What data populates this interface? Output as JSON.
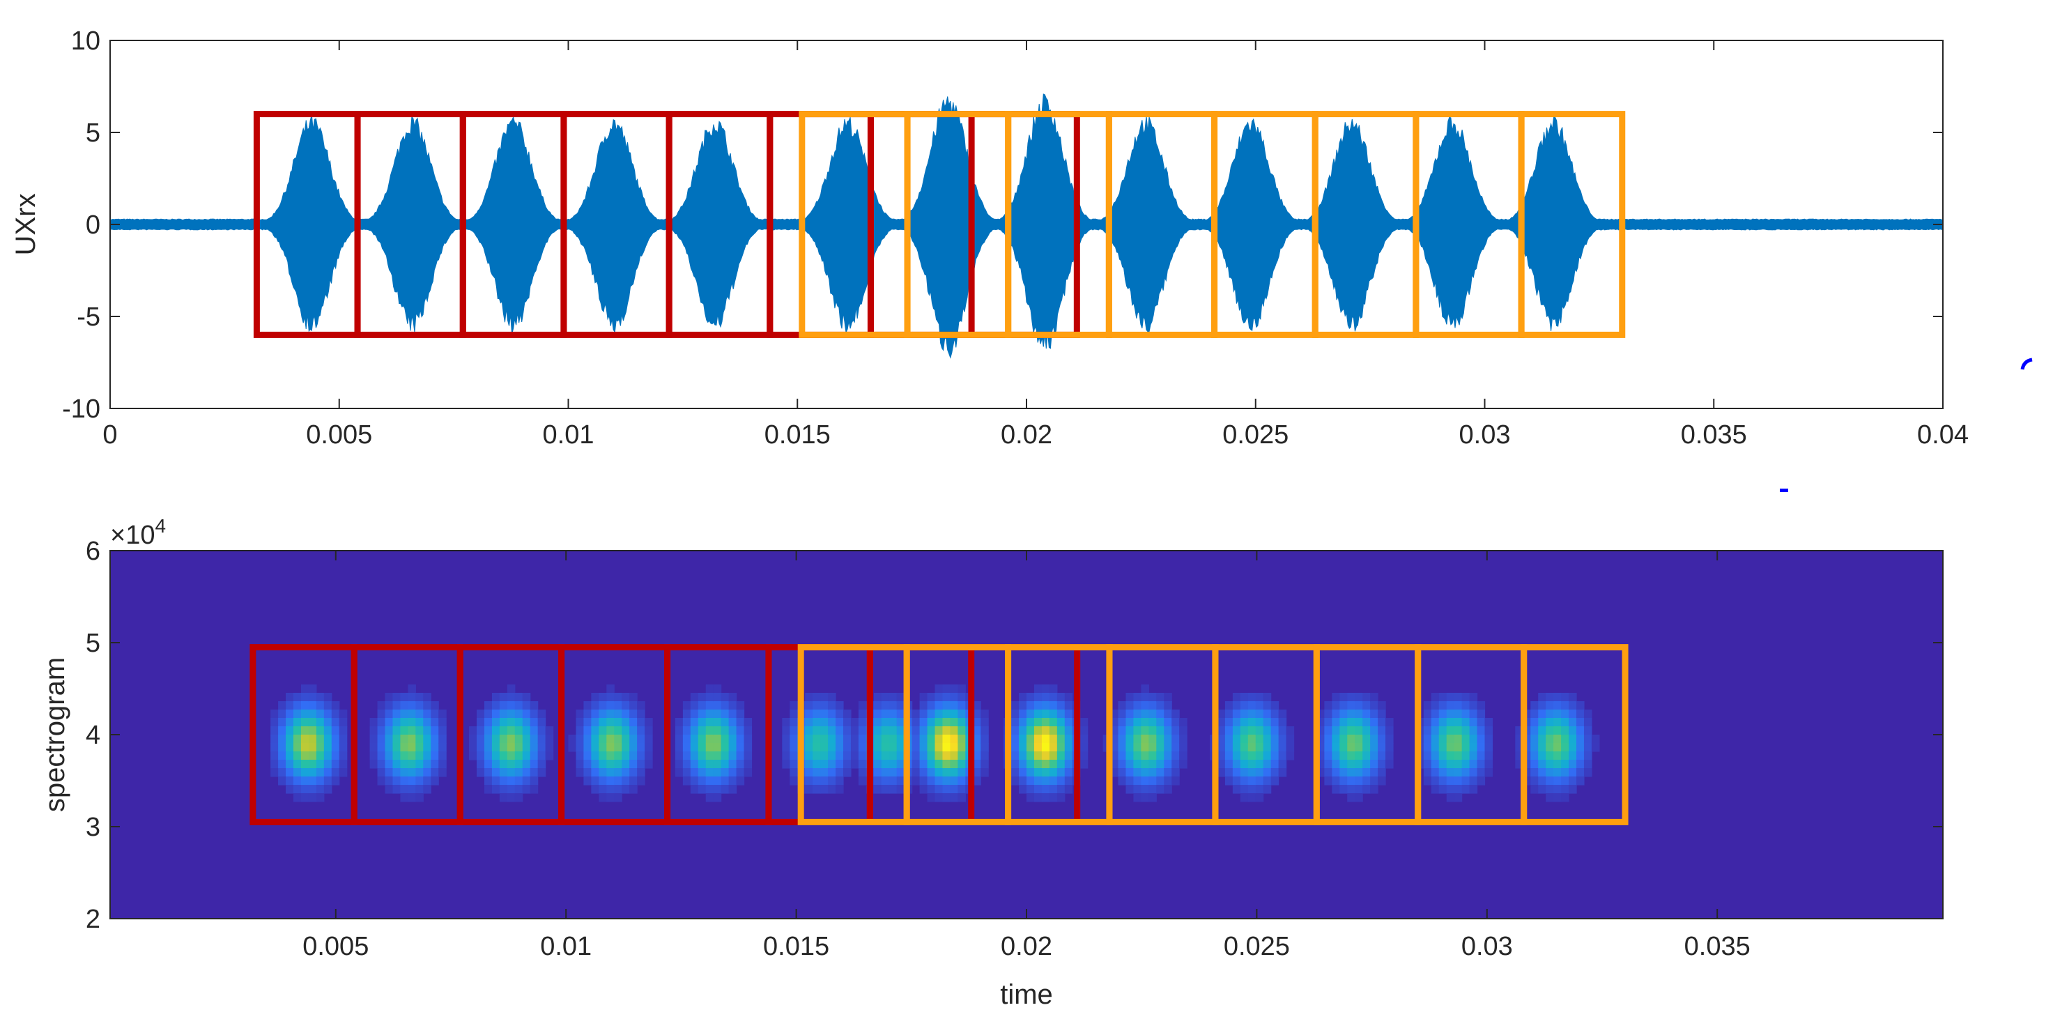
{
  "chart_data": [
    {
      "type": "line",
      "xlabel": "",
      "ylabel": "UXrx",
      "xlim": [
        0,
        0.04
      ],
      "ylim": [
        -10,
        10
      ],
      "x_ticks": [
        0,
        0.005,
        0.01,
        0.015,
        0.02,
        0.025,
        0.03,
        0.035,
        0.04
      ],
      "x_tick_labels": [
        "0",
        "0.005",
        "0.01",
        "0.015",
        "0.02",
        "0.025",
        "0.03",
        "0.035",
        "0.04"
      ],
      "y_ticks": [
        -10,
        -5,
        0,
        5,
        10
      ],
      "y_tick_labels": [
        "-10",
        "-5",
        "0",
        "5",
        "10"
      ],
      "series_color": "#0072bd",
      "noise_floor_amplitude": 0.3,
      "pulses": [
        {
          "center": 0.0044,
          "peak": 6.0
        },
        {
          "center": 0.0066,
          "peak": 6.0
        },
        {
          "center": 0.0088,
          "peak": 6.0
        },
        {
          "center": 0.011,
          "peak": 6.0
        },
        {
          "center": 0.0132,
          "peak": 6.0
        },
        {
          "center": 0.0161,
          "peak": 6.0
        },
        {
          "center": 0.0183,
          "peak": 7.3
        },
        {
          "center": 0.0204,
          "peak": 7.2
        },
        {
          "center": 0.0226,
          "peak": 6.0
        },
        {
          "center": 0.0249,
          "peak": 6.0
        },
        {
          "center": 0.0271,
          "peak": 6.0
        },
        {
          "center": 0.0293,
          "peak": 6.0
        },
        {
          "center": 0.0315,
          "peak": 6.0
        }
      ],
      "red_windows": {
        "t_start": [
          0.0032,
          0.0054,
          0.0077,
          0.0099,
          0.0122,
          0.0144
        ],
        "t_end": [
          0.0054,
          0.0077,
          0.0099,
          0.0122,
          0.0144,
          0.0166
        ],
        "y_range": [
          -6,
          6
        ],
        "color": "#c00000"
      },
      "orange_windows": {
        "t_start": [
          0.0151,
          0.0174,
          0.0196,
          0.0218,
          0.0241,
          0.0263,
          0.0285,
          0.0308
        ],
        "t_end": [
          0.0174,
          0.0196,
          0.0218,
          0.0241,
          0.0263,
          0.0285,
          0.0308,
          0.033
        ],
        "y_range": [
          -6,
          6
        ],
        "color": "#ff9f10"
      },
      "extra_red_window": {
        "t_start": 0.0166,
        "t_end": 0.0211,
        "divider": 0.0188
      }
    },
    {
      "type": "heatmap",
      "xlabel": "time",
      "ylabel": "spectrogram",
      "xlim": [
        0.0001,
        0.0399
      ],
      "ylim": [
        2,
        6
      ],
      "y_exponent_label": "×10",
      "y_exponent": "4",
      "x_ticks": [
        0.005,
        0.01,
        0.015,
        0.02,
        0.025,
        0.03,
        0.035
      ],
      "x_tick_labels": [
        "0.005",
        "0.01",
        "0.015",
        "0.02",
        "0.025",
        "0.03",
        "0.035"
      ],
      "y_ticks": [
        2,
        3,
        4,
        5,
        6
      ],
      "y_tick_labels": [
        "2",
        "3",
        "4",
        "5",
        "6"
      ],
      "background_color": "#3e26a8",
      "blob_centers_time": [
        0.0044,
        0.0066,
        0.0088,
        0.011,
        0.0132,
        0.0155,
        0.017,
        0.0183,
        0.0204,
        0.0226,
        0.0249,
        0.0271,
        0.0293,
        0.0315
      ],
      "blob_intensity": [
        0.85,
        0.75,
        0.75,
        0.75,
        0.75,
        0.6,
        0.6,
        1.0,
        1.0,
        0.75,
        0.7,
        0.72,
        0.72,
        0.72
      ],
      "blob_center_freq": 3.9,
      "red_windows": {
        "t_start": [
          0.0032,
          0.0054,
          0.0077,
          0.0099,
          0.0122,
          0.0144
        ],
        "t_end": [
          0.0054,
          0.0077,
          0.0099,
          0.0122,
          0.0144,
          0.0166
        ],
        "y_range": [
          3.05,
          4.95
        ]
      },
      "orange_windows": {
        "t_start": [
          0.0151,
          0.0174,
          0.0196,
          0.0218,
          0.0241,
          0.0263,
          0.0285,
          0.0308
        ],
        "t_end": [
          0.0174,
          0.0196,
          0.0218,
          0.0241,
          0.0263,
          0.0285,
          0.0308,
          0.033
        ],
        "y_range": [
          3.05,
          4.95
        ]
      },
      "extra_red_window": {
        "t_start": 0.0166,
        "t_end": 0.0211,
        "divider": 0.0188
      }
    }
  ]
}
